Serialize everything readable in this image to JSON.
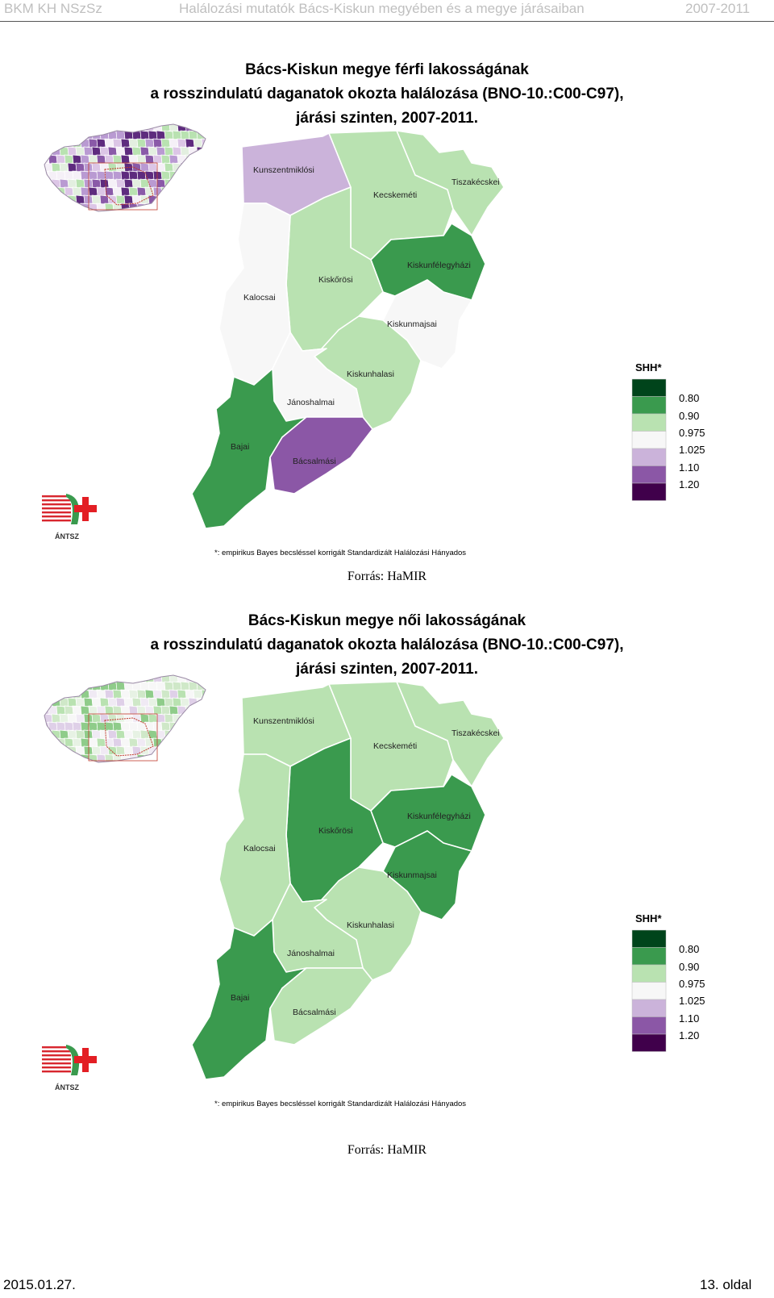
{
  "header": {
    "left": "BKM KH NSzSz",
    "center": "Halálozási mutatók Bács-Kiskun megyében és a megye járásaiban",
    "right": "2007-2011"
  },
  "legend": {
    "title": "SHH*",
    "colors": [
      "#00441b",
      "#3a9a4e",
      "#b9e2b1",
      "#f7f7f7",
      "#cbb3da",
      "#8b57a6",
      "#40004b"
    ],
    "breaks": [
      "0.80",
      "0.90",
      "0.975",
      "1.025",
      "1.10",
      "1.20"
    ]
  },
  "maps": [
    {
      "title_lines": [
        "Bács-Kiskun megye férfi lakosságának",
        "a rosszindulatú daganatok okozta halálozása (BNO-10.:C00-C97),",
        "járási szinten, 2007-2011."
      ],
      "districts": [
        {
          "name": "Kunszentmiklósi",
          "class": 4
        },
        {
          "name": "Kecskeméti",
          "class": 2
        },
        {
          "name": "Tiszakécskei",
          "class": 2
        },
        {
          "name": "Kiskunfélegyházi",
          "class": 1
        },
        {
          "name": "Kiskőrösi",
          "class": 2
        },
        {
          "name": "Kalocsai",
          "class": 3
        },
        {
          "name": "Kiskunmajsai",
          "class": 3
        },
        {
          "name": "Kiskunhalasi",
          "class": 2
        },
        {
          "name": "Jánoshalmai",
          "class": 3
        },
        {
          "name": "Bajai",
          "class": 1
        },
        {
          "name": "Bácsalmási",
          "class": 5
        }
      ],
      "footnote": "*: empirikus Bayes becsléssel korrigált Standardizált Halálozási Hányados",
      "logo_text": "ÁNTSZ",
      "source": "Forrás: HaMIR"
    },
    {
      "title_lines": [
        "Bács-Kiskun megye női lakosságának",
        "a rosszindulatú daganatok okozta halálozása (BNO-10.:C00-C97),",
        "járási szinten, 2007-2011."
      ],
      "districts": [
        {
          "name": "Kunszentmiklósi",
          "class": 2
        },
        {
          "name": "Kecskeméti",
          "class": 2
        },
        {
          "name": "Tiszakécskei",
          "class": 2
        },
        {
          "name": "Kiskunfélegyházi",
          "class": 1
        },
        {
          "name": "Kiskőrösi",
          "class": 1
        },
        {
          "name": "Kalocsai",
          "class": 2
        },
        {
          "name": "Kiskunmajsai",
          "class": 1
        },
        {
          "name": "Kiskunhalasi",
          "class": 2
        },
        {
          "name": "Jánoshalmai",
          "class": 2
        },
        {
          "name": "Bajai",
          "class": 1
        },
        {
          "name": "Bácsalmási",
          "class": 2
        }
      ],
      "footnote": "*: empirikus Bayes becsléssel korrigált Standardizált Halálozási Hányados",
      "logo_text": "ÁNTSZ",
      "source": "Forrás: HaMIR"
    }
  ],
  "footer": {
    "date": "2015.01.27.",
    "page": "13. oldal"
  }
}
